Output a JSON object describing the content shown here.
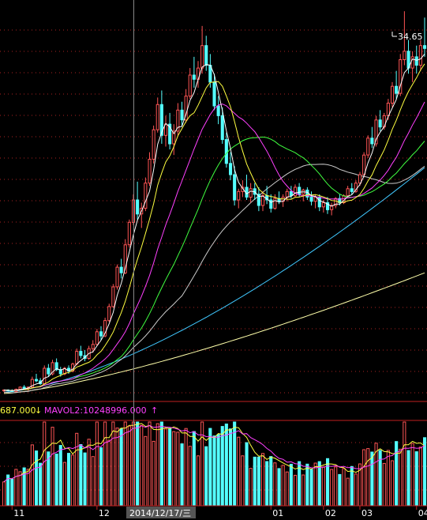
{
  "chart_data": [
    {
      "type": "candlestick",
      "panel": "price",
      "x_period_labels": [
        "11",
        "12",
        "01",
        "02",
        "03",
        "04"
      ],
      "crosshair_date": "2014/12/17/三",
      "max_label": "34.65",
      "grid": true,
      "colors": {
        "up": "#ff5555",
        "down": "#54ffff",
        "ma1": "#ffffff",
        "ma2": "#ffff40",
        "ma3": "#ff40ff",
        "ma4": "#40ff40",
        "ma5": "#cccccc",
        "ma6": "#40c8ff",
        "ma7": "#ffffaa",
        "grid": "#aa2222",
        "crosshair": "#888888"
      },
      "candles": [
        [
          7.6,
          7.7,
          7.5,
          7.65
        ],
        [
          7.65,
          7.7,
          7.55,
          7.6
        ],
        [
          7.6,
          7.7,
          7.5,
          7.55
        ],
        [
          7.55,
          7.75,
          7.5,
          7.7
        ],
        [
          7.7,
          7.9,
          7.6,
          7.85
        ],
        [
          7.85,
          8.0,
          7.7,
          7.75
        ],
        [
          7.75,
          7.9,
          7.6,
          7.85
        ],
        [
          7.85,
          8.6,
          7.8,
          8.4
        ],
        [
          8.4,
          8.8,
          8.2,
          8.3
        ],
        [
          8.3,
          8.5,
          8.0,
          8.1
        ],
        [
          8.1,
          9.4,
          8.1,
          9.2
        ],
        [
          9.2,
          9.5,
          8.6,
          8.8
        ],
        [
          8.8,
          9.8,
          8.7,
          9.6
        ],
        [
          9.6,
          9.9,
          9.0,
          9.1
        ],
        [
          9.1,
          9.3,
          8.6,
          8.8
        ],
        [
          8.8,
          9.3,
          8.7,
          9.2
        ],
        [
          9.2,
          9.4,
          8.8,
          9.0
        ],
        [
          9.0,
          9.6,
          8.9,
          9.5
        ],
        [
          9.5,
          10.6,
          9.4,
          10.4
        ],
        [
          10.4,
          10.8,
          9.9,
          10.1
        ],
        [
          10.1,
          10.5,
          9.7,
          9.9
        ],
        [
          9.9,
          10.8,
          9.8,
          10.6
        ],
        [
          10.6,
          11.2,
          10.3,
          10.9
        ],
        [
          10.9,
          12.0,
          10.8,
          11.8
        ],
        [
          11.8,
          12.2,
          11.2,
          11.5
        ],
        [
          11.5,
          12.8,
          11.4,
          12.6
        ],
        [
          12.6,
          13.8,
          12.5,
          13.6
        ],
        [
          13.6,
          15.2,
          13.5,
          15.0
        ],
        [
          15.0,
          16.6,
          14.8,
          16.4
        ],
        [
          16.4,
          17.0,
          15.6,
          16.0
        ],
        [
          16.0,
          18.4,
          15.9,
          18.0
        ],
        [
          18.0,
          19.8,
          17.8,
          19.6
        ],
        [
          19.6,
          21.6,
          19.4,
          21.2
        ],
        [
          21.2,
          22.5,
          19.8,
          20.2
        ],
        [
          20.2,
          21.0,
          19.2,
          20.6
        ],
        [
          20.6,
          22.8,
          20.4,
          22.4
        ],
        [
          22.4,
          24.6,
          22.2,
          24.1
        ],
        [
          24.1,
          26.5,
          23.8,
          26.2
        ],
        [
          26.2,
          28.5,
          26.0,
          28.0
        ],
        [
          28.0,
          29.0,
          25.2,
          25.8
        ],
        [
          25.8,
          27.2,
          25.0,
          26.6
        ],
        [
          26.6,
          27.4,
          24.8,
          25.2
        ],
        [
          25.2,
          26.6,
          24.4,
          26.1
        ],
        [
          26.1,
          28.1,
          25.8,
          27.6
        ],
        [
          27.6,
          28.2,
          26.4,
          26.9
        ],
        [
          26.9,
          29.1,
          26.7,
          28.6
        ],
        [
          28.6,
          30.6,
          28.4,
          30.1
        ],
        [
          30.1,
          31.4,
          29.2,
          29.8
        ],
        [
          29.8,
          31.1,
          29.2,
          30.6
        ],
        [
          30.6,
          33.6,
          30.2,
          32.2
        ],
        [
          32.2,
          32.9,
          30.4,
          30.8
        ],
        [
          30.8,
          31.6,
          29.2,
          29.6
        ],
        [
          29.6,
          30.2,
          27.6,
          27.9
        ],
        [
          27.9,
          28.6,
          26.6,
          27.2
        ],
        [
          27.2,
          27.8,
          25.2,
          25.5
        ],
        [
          25.5,
          26.0,
          23.5,
          23.8
        ],
        [
          23.8,
          24.6,
          22.6,
          23.0
        ],
        [
          23.0,
          23.6,
          20.8,
          21.2
        ],
        [
          21.2,
          22.0,
          20.6,
          21.8
        ],
        [
          21.8,
          22.6,
          21.4,
          22.1
        ],
        [
          22.1,
          23.0,
          21.2,
          21.4
        ],
        [
          21.4,
          22.4,
          21.0,
          22.0
        ],
        [
          22.0,
          22.4,
          21.2,
          21.6
        ],
        [
          21.6,
          22.1,
          20.4,
          20.8
        ],
        [
          20.8,
          21.8,
          20.4,
          21.5
        ],
        [
          21.5,
          22.2,
          20.9,
          21.2
        ],
        [
          21.2,
          21.6,
          20.3,
          20.6
        ],
        [
          20.6,
          21.6,
          20.5,
          21.3
        ],
        [
          21.3,
          21.8,
          20.9,
          21.1
        ],
        [
          21.1,
          21.6,
          20.7,
          21.4
        ],
        [
          21.4,
          22.0,
          21.1,
          21.8
        ],
        [
          21.8,
          22.2,
          21.3,
          21.5
        ],
        [
          21.5,
          22.3,
          21.4,
          22.1
        ],
        [
          22.1,
          22.4,
          21.4,
          21.6
        ],
        [
          21.6,
          22.0,
          21.1,
          21.9
        ],
        [
          21.9,
          22.1,
          21.2,
          21.4
        ],
        [
          21.4,
          21.8,
          20.8,
          21.1
        ],
        [
          21.1,
          21.6,
          20.6,
          21.4
        ],
        [
          21.4,
          21.6,
          20.4,
          20.7
        ],
        [
          20.7,
          21.2,
          20.3,
          21.0
        ],
        [
          21.0,
          21.4,
          20.2,
          20.5
        ],
        [
          20.5,
          21.0,
          20.1,
          20.8
        ],
        [
          20.8,
          21.4,
          20.6,
          21.3
        ],
        [
          21.3,
          21.6,
          20.8,
          21.0
        ],
        [
          21.0,
          21.6,
          20.9,
          21.5
        ],
        [
          21.5,
          22.2,
          21.4,
          22.0
        ],
        [
          22.0,
          22.4,
          21.6,
          21.8
        ],
        [
          21.8,
          22.6,
          21.7,
          22.4
        ],
        [
          22.4,
          23.2,
          22.2,
          23.0
        ],
        [
          23.0,
          24.6,
          22.8,
          24.4
        ],
        [
          24.4,
          25.8,
          24.2,
          25.6
        ],
        [
          25.6,
          26.4,
          24.9,
          25.2
        ],
        [
          25.2,
          27.2,
          25.0,
          26.9
        ],
        [
          26.9,
          27.6,
          26.1,
          26.4
        ],
        [
          26.4,
          27.4,
          26.2,
          27.2
        ],
        [
          27.2,
          28.4,
          26.9,
          28.1
        ],
        [
          28.1,
          29.6,
          27.8,
          29.3
        ],
        [
          29.3,
          30.4,
          28.4,
          28.8
        ],
        [
          28.8,
          31.6,
          28.6,
          31.2
        ],
        [
          31.2,
          34.65,
          30.8,
          31.8
        ],
        [
          31.8,
          32.6,
          30.2,
          30.6
        ],
        [
          30.6,
          31.8,
          29.6,
          31.4
        ],
        [
          31.4,
          32.2,
          30.2,
          30.8
        ],
        [
          30.8,
          32.6,
          30.4,
          32.2
        ],
        [
          32.2,
          34.2,
          31.4,
          32.0
        ]
      ],
      "crosshair_index": 32,
      "ylim": [
        7.0,
        35.0
      ],
      "long_ma_endpoints": {
        "ma5": [
          7.6,
          22.0
        ],
        "ma6": [
          7.5,
          23.5
        ],
        "ma7": [
          7.4,
          16.0
        ]
      }
    },
    {
      "type": "bar",
      "panel": "volume",
      "mavol_left_text": "687.000",
      "mavol2_label": "MAVOL2:10248996.000",
      "ylim": [
        0,
        1
      ]
    }
  ]
}
